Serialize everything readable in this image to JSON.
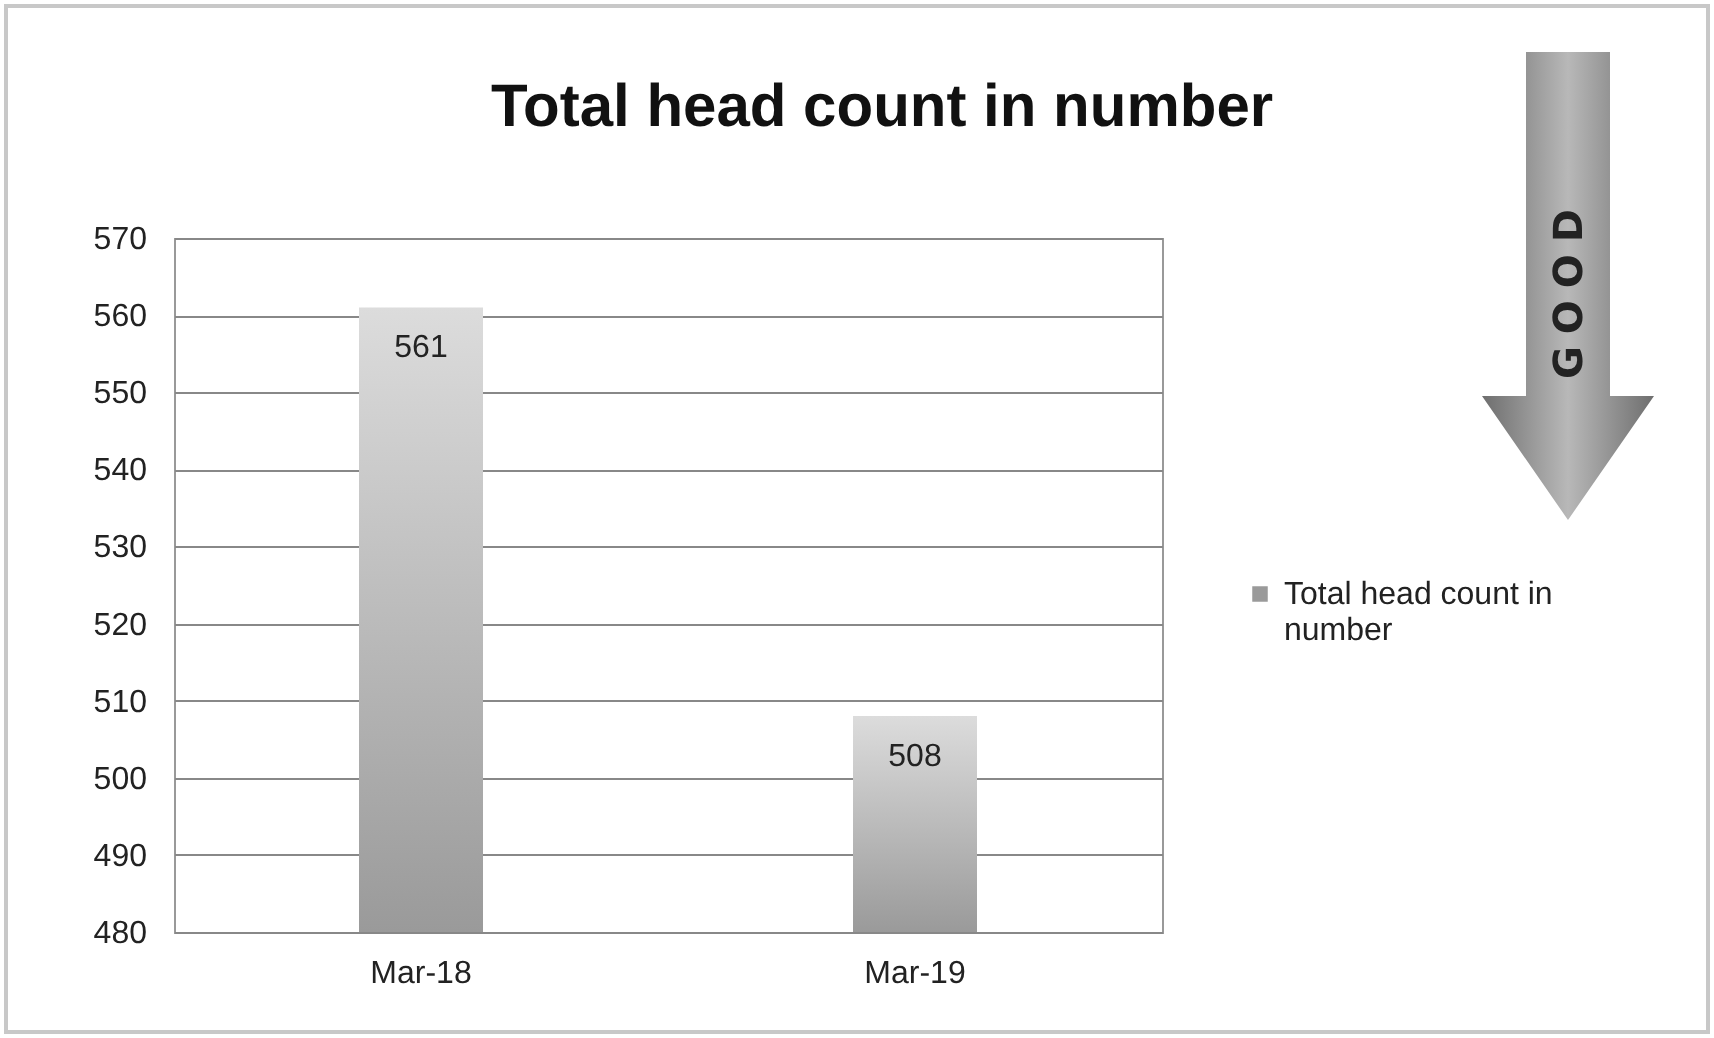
{
  "chart_data": {
    "type": "bar",
    "title": "Total head count in number",
    "categories": [
      "Mar-18",
      "Mar-19"
    ],
    "series": [
      {
        "name": "Total head count in number",
        "color": "#9a9a9a",
        "values": [
          561,
          508
        ]
      }
    ],
    "ylim": [
      480,
      570
    ],
    "yticks": [
      480,
      490,
      500,
      510,
      520,
      530,
      540,
      550,
      560,
      570
    ],
    "grid": "y",
    "legend": "right",
    "data_labels": true,
    "annotations": [
      "GOOD"
    ]
  }
}
